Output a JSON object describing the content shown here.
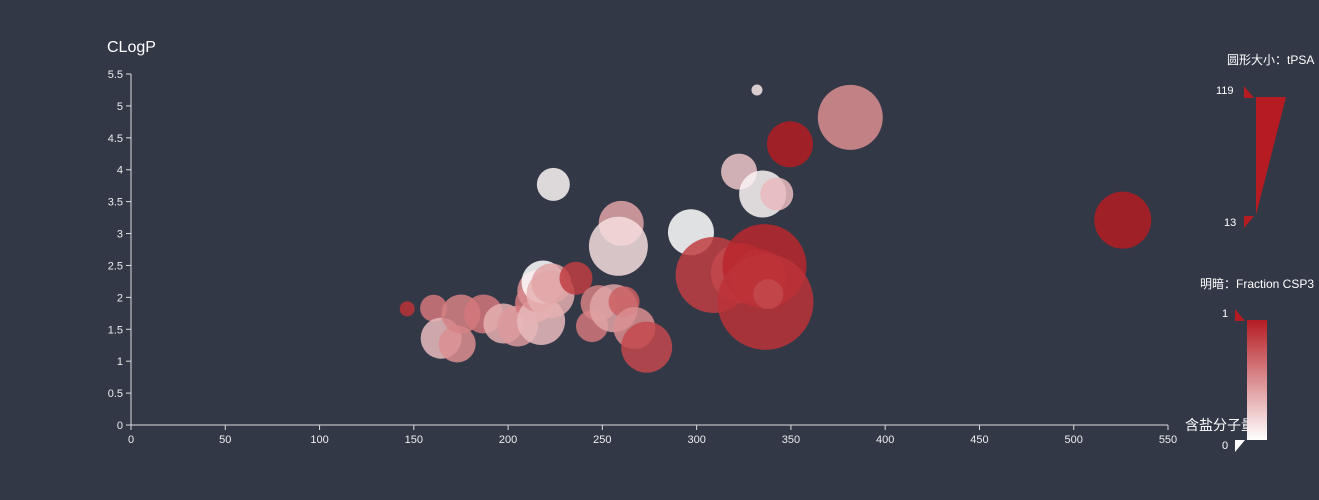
{
  "chart_data": {
    "type": "scatter",
    "title": "",
    "ylabel": "CLogP",
    "xlabel": "",
    "xlim": [
      0,
      550
    ],
    "ylim": [
      0,
      5.5
    ],
    "x_ticks": [
      "0",
      "50",
      "100",
      "150",
      "200",
      "250",
      "300",
      "350",
      "400",
      "450",
      "500",
      "550"
    ],
    "y_ticks": [
      "0",
      "0.5",
      "1",
      "1.5",
      "2",
      "2.5",
      "3",
      "3.5",
      "4",
      "4.5",
      "5",
      "5.5"
    ],
    "grid": false,
    "legend": "含盐分子量",
    "size_legend": {
      "title": "圆形大小：tPSA",
      "max_label": "119",
      "min_label": "13",
      "min": 13,
      "max": 119
    },
    "color_legend": {
      "title": "明暗：Fraction CSP3",
      "max_label": "1",
      "min_label": "0",
      "min": 0,
      "max": 1,
      "color_low": "#ffffff",
      "color_high": "#b41c22"
    },
    "points": [
      {
        "x": 146.5,
        "y": 1.82,
        "size": 15,
        "shade": 0.9
      },
      {
        "x": 160.5,
        "y": 1.83,
        "size": 27,
        "shade": 0.6
      },
      {
        "x": 164.5,
        "y": 1.36,
        "size": 41,
        "shade": 0.3
      },
      {
        "x": 173,
        "y": 1.27,
        "size": 37,
        "shade": 0.5
      },
      {
        "x": 175,
        "y": 1.74,
        "size": 39,
        "shade": 0.55
      },
      {
        "x": 187,
        "y": 1.74,
        "size": 39,
        "shade": 0.6
      },
      {
        "x": 197.5,
        "y": 1.59,
        "size": 40,
        "shade": 0.35
      },
      {
        "x": 205,
        "y": 1.55,
        "size": 41,
        "shade": 0.45
      },
      {
        "x": 214,
        "y": 1.91,
        "size": 39,
        "shade": 0.6
      },
      {
        "x": 217.5,
        "y": 1.63,
        "size": 48,
        "shade": 0.3
      },
      {
        "x": 216,
        "y": 2.1,
        "size": 42,
        "shade": 0.5
      },
      {
        "x": 218.5,
        "y": 2.24,
        "size": 43,
        "shade": 0.0
      },
      {
        "x": 222.5,
        "y": 2.05,
        "size": 48,
        "shade": 0.35
      },
      {
        "x": 223,
        "y": 2.22,
        "size": 40,
        "shade": 0.4
      },
      {
        "x": 224,
        "y": 3.77,
        "size": 33,
        "shade": 0.05
      },
      {
        "x": 236,
        "y": 2.3,
        "size": 33,
        "shade": 0.85
      },
      {
        "x": 244.5,
        "y": 1.55,
        "size": 32,
        "shade": 0.6
      },
      {
        "x": 248,
        "y": 1.91,
        "size": 36,
        "shade": 0.55
      },
      {
        "x": 256,
        "y": 1.83,
        "size": 48,
        "shade": 0.4
      },
      {
        "x": 260,
        "y": 3.16,
        "size": 45,
        "shade": 0.4
      },
      {
        "x": 261.5,
        "y": 1.93,
        "size": 31,
        "shade": 0.7
      },
      {
        "x": 258.5,
        "y": 2.8,
        "size": 59,
        "shade": 0.15
      },
      {
        "x": 267,
        "y": 1.52,
        "size": 42,
        "shade": 0.5
      },
      {
        "x": 273.5,
        "y": 1.22,
        "size": 51,
        "shade": 0.8
      },
      {
        "x": 297,
        "y": 3.02,
        "size": 46,
        "shade": 0.0
      },
      {
        "x": 309,
        "y": 2.35,
        "size": 76,
        "shade": 0.85
      },
      {
        "x": 322.5,
        "y": 3.97,
        "size": 36,
        "shade": 0.25
      },
      {
        "x": 323.5,
        "y": 2.38,
        "size": 60,
        "shade": 0.8
      },
      {
        "x": 333,
        "y": 2.32,
        "size": 55,
        "shade": 0.7
      },
      {
        "x": 332,
        "y": 5.25,
        "size": 11,
        "shade": 0.1
      },
      {
        "x": 336,
        "y": 2.49,
        "size": 84,
        "shade": 0.95
      },
      {
        "x": 336.5,
        "y": 1.93,
        "size": 96,
        "shade": 0.9
      },
      {
        "x": 338,
        "y": 2.05,
        "size": 30,
        "shade": 0.8
      },
      {
        "x": 335,
        "y": 3.62,
        "size": 47,
        "shade": 0.05
      },
      {
        "x": 342.5,
        "y": 3.62,
        "size": 33,
        "shade": 0.3
      },
      {
        "x": 349.5,
        "y": 4.4,
        "size": 46,
        "shade": 1.0
      },
      {
        "x": 381.5,
        "y": 4.82,
        "size": 65,
        "shade": 0.5
      },
      {
        "x": 526,
        "y": 3.21,
        "size": 57,
        "shade": 1.0
      }
    ]
  }
}
